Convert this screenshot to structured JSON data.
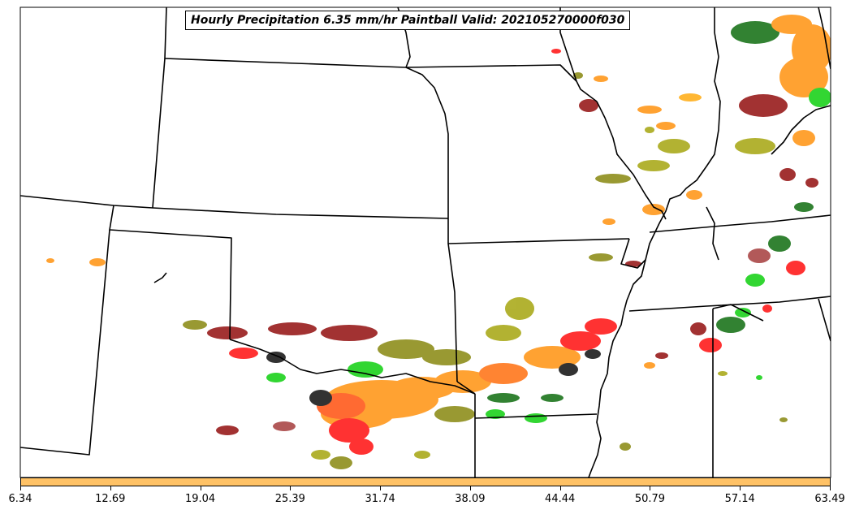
{
  "title": "Hourly Precipitation 6.35 mm/hr Paintball Valid: 202105270000f030",
  "colorbar": {
    "color": "#ffc266",
    "tick_labels": [
      "6.34",
      "12.69",
      "19.04",
      "25.39",
      "31.74",
      "38.09",
      "44.44",
      "50.79",
      "57.14",
      "63.49"
    ]
  },
  "member_colors": [
    "#8b0000",
    "#808000",
    "#ff8c00",
    "#ff0000",
    "#00bb00",
    "#006400",
    "#000000",
    "#ffa500",
    "#a03030",
    "#b0a000"
  ]
}
